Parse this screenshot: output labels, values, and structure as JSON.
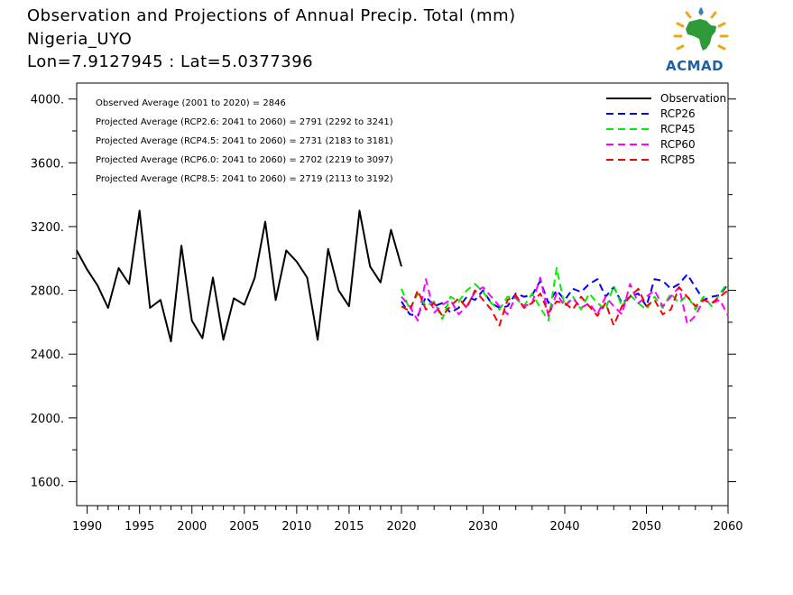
{
  "header": {
    "title": "Observation and Projections of Annual Precip. Total (mm)",
    "location": "Nigeria_UYO",
    "coords": "Lon=7.9127945 : Lat=5.0377396"
  },
  "logo": {
    "text": "ACMAD"
  },
  "colors": {
    "observation": "#000000",
    "rcp26": "#0000ff",
    "rcp45": "#00ee00",
    "rcp60": "#ff00ff",
    "rcp85": "#ff0000"
  },
  "chart_data": {
    "type": "line",
    "xlim": [
      1989,
      2060
    ],
    "ylim": [
      1450,
      4100
    ],
    "x_ticks": [
      1990,
      1995,
      2000,
      2005,
      2010,
      2015,
      2020,
      2030,
      2040,
      2050,
      2060
    ],
    "y_ticks": [
      1600,
      2000,
      2400,
      2800,
      3200,
      3600,
      4000
    ],
    "y_tick_labels": [
      "1600.",
      "2000.",
      "2400.",
      "2800.",
      "3200.",
      "3600.",
      "4000."
    ],
    "legend_position": "top-right",
    "annotations": [
      "Observed Average (2001 to 2020) = 2846",
      "Projected Average (RCP2.6: 2041 to 2060) = 2791 (2292 to 3241)",
      "Projected Average (RCP4.5: 2041 to 2060) = 2731 (2183 to 3181)",
      "Projected Average (RCP6.0: 2041 to 2060) = 2702 (2219 to 3097)",
      "Projected Average (RCP8.5: 2041 to 2060) = 2719 (2113 to 3192)"
    ],
    "series": [
      {
        "name": "Observation",
        "style": "solid",
        "x": [
          1989,
          1990,
          1991,
          1992,
          1993,
          1994,
          1995,
          1996,
          1997,
          1998,
          1999,
          2000,
          2001,
          2002,
          2003,
          2004,
          2005,
          2006,
          2007,
          2008,
          2009,
          2010,
          2011,
          2012,
          2013,
          2014,
          2015,
          2016,
          2017,
          2018,
          2019,
          2020
        ],
        "values": [
          3050,
          2930,
          2830,
          2690,
          2940,
          2840,
          3300,
          2690,
          2740,
          2480,
          3080,
          2610,
          2500,
          2880,
          2490,
          2750,
          2710,
          2880,
          3230,
          2740,
          3050,
          2980,
          2880,
          2490,
          3060,
          2800,
          2700,
          3300,
          2950,
          2850,
          3180,
          2950
        ]
      },
      {
        "name": "RCP26",
        "style": "dashed",
        "x": [
          2020,
          2021,
          2022,
          2023,
          2024,
          2025,
          2026,
          2027,
          2028,
          2029,
          2030,
          2031,
          2032,
          2033,
          2034,
          2035,
          2036,
          2037,
          2038,
          2039,
          2040,
          2041,
          2042,
          2043,
          2044,
          2045,
          2046,
          2047,
          2048,
          2049,
          2050,
          2051,
          2052,
          2053,
          2054,
          2055,
          2056,
          2057,
          2058,
          2059,
          2060
        ],
        "values": [
          2730,
          2650,
          2640,
          2760,
          2700,
          2720,
          2660,
          2690,
          2760,
          2740,
          2800,
          2720,
          2690,
          2700,
          2780,
          2760,
          2770,
          2860,
          2720,
          2800,
          2740,
          2810,
          2790,
          2840,
          2870,
          2760,
          2820,
          2720,
          2760,
          2780,
          2700,
          2870,
          2860,
          2810,
          2840,
          2900,
          2820,
          2740,
          2760,
          2770,
          2840
        ]
      },
      {
        "name": "RCP45",
        "style": "dashed",
        "x": [
          2020,
          2021,
          2022,
          2023,
          2024,
          2025,
          2026,
          2027,
          2028,
          2029,
          2030,
          2031,
          2032,
          2033,
          2034,
          2035,
          2036,
          2037,
          2038,
          2039,
          2040,
          2041,
          2042,
          2043,
          2044,
          2045,
          2046,
          2047,
          2048,
          2049,
          2050,
          2051,
          2052,
          2053,
          2054,
          2055,
          2056,
          2057,
          2058,
          2059,
          2060
        ],
        "values": [
          2810,
          2680,
          2780,
          2700,
          2730,
          2620,
          2760,
          2730,
          2800,
          2840,
          2790,
          2720,
          2680,
          2760,
          2750,
          2700,
          2780,
          2690,
          2610,
          2940,
          2700,
          2760,
          2680,
          2780,
          2720,
          2680,
          2830,
          2700,
          2770,
          2720,
          2680,
          2760,
          2690,
          2780,
          2720,
          2770,
          2680,
          2760,
          2700,
          2780,
          2850
        ]
      },
      {
        "name": "RCP60",
        "style": "dashed",
        "x": [
          2020,
          2021,
          2022,
          2023,
          2024,
          2025,
          2026,
          2027,
          2028,
          2029,
          2030,
          2031,
          2032,
          2033,
          2034,
          2035,
          2036,
          2037,
          2038,
          2039,
          2040,
          2041,
          2042,
          2043,
          2044,
          2045,
          2046,
          2047,
          2048,
          2049,
          2050,
          2051,
          2052,
          2053,
          2054,
          2055,
          2056,
          2057,
          2058,
          2059,
          2060
        ],
        "values": [
          2760,
          2700,
          2610,
          2870,
          2660,
          2710,
          2740,
          2650,
          2700,
          2790,
          2820,
          2760,
          2700,
          2650,
          2760,
          2700,
          2720,
          2880,
          2640,
          2780,
          2700,
          2750,
          2690,
          2720,
          2650,
          2760,
          2700,
          2650,
          2840,
          2720,
          2760,
          2800,
          2700,
          2760,
          2820,
          2590,
          2640,
          2740,
          2720,
          2740,
          2640
        ]
      },
      {
        "name": "RCP85",
        "style": "dashed",
        "x": [
          2020,
          2021,
          2022,
          2023,
          2024,
          2025,
          2026,
          2027,
          2028,
          2029,
          2030,
          2031,
          2032,
          2033,
          2034,
          2035,
          2036,
          2037,
          2038,
          2039,
          2040,
          2041,
          2042,
          2043,
          2044,
          2045,
          2046,
          2047,
          2048,
          2049,
          2050,
          2051,
          2052,
          2053,
          2054,
          2055,
          2056,
          2057,
          2058,
          2059,
          2060
        ],
        "values": [
          2700,
          2670,
          2800,
          2680,
          2720,
          2640,
          2700,
          2750,
          2690,
          2800,
          2740,
          2680,
          2580,
          2740,
          2770,
          2690,
          2720,
          2780,
          2660,
          2730,
          2720,
          2680,
          2760,
          2700,
          2640,
          2720,
          2580,
          2700,
          2760,
          2810,
          2700,
          2740,
          2650,
          2680,
          2820,
          2760,
          2700,
          2740,
          2720,
          2760,
          2800
        ]
      }
    ]
  }
}
